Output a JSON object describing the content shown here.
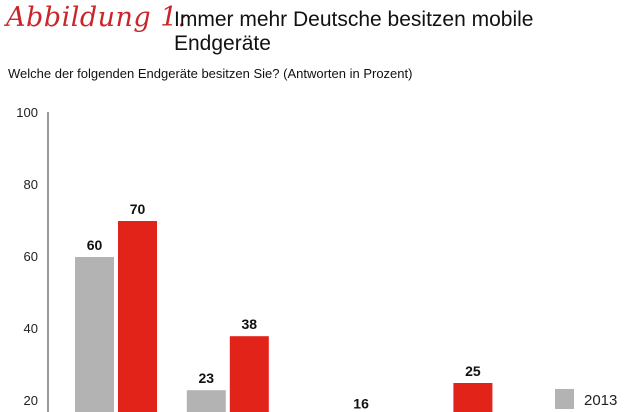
{
  "header": {
    "figure_label": "Abbildung 1:",
    "title": "Immer mehr Deutsche besitzen mobile Endgeräte"
  },
  "chart_data": {
    "type": "bar",
    "title": "Immer mehr Deutsche besitzen mobile Endgeräte",
    "subtitle": "Welche der folgenden Endgeräte besitzen Sie? (Antworten in Prozent)",
    "xlabel": "",
    "ylabel": "",
    "ylim": [
      0,
      100
    ],
    "yticks": [
      100,
      80,
      60,
      40,
      20
    ],
    "categories": [
      "",
      "",
      "",
      ""
    ],
    "series": [
      {
        "name": "2013",
        "color": "#b3b3b3",
        "values": [
          60,
          23,
          null,
          null
        ]
      },
      {
        "name": "",
        "color": "#e2231a",
        "values": [
          70,
          38,
          16,
          25
        ]
      }
    ],
    "legend": {
      "position": "bottom-right",
      "entries": [
        "2013"
      ]
    },
    "grid": false
  }
}
